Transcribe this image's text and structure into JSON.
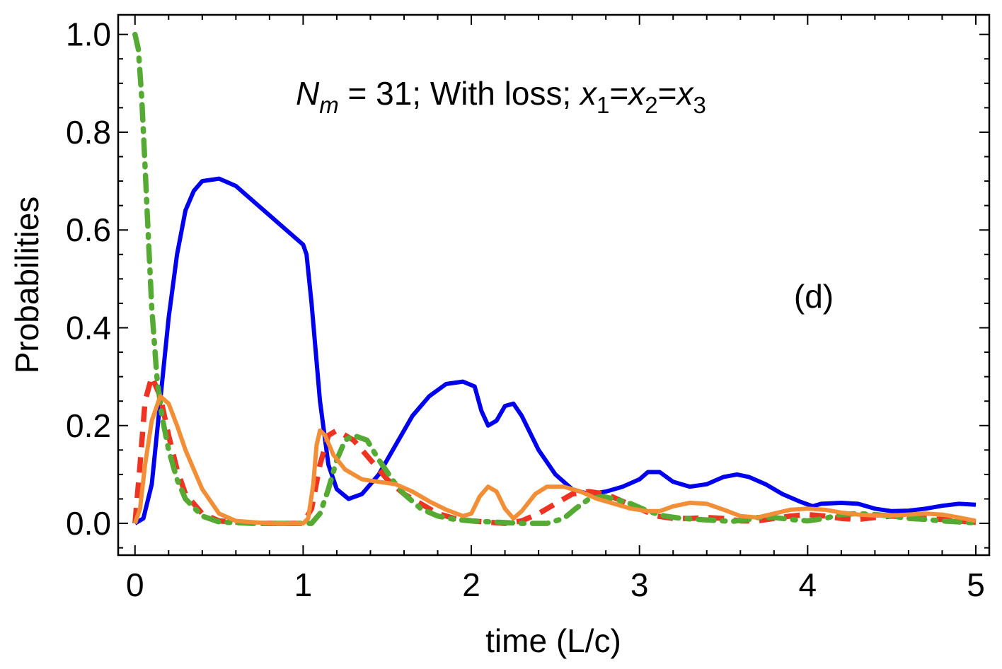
{
  "chart_data": {
    "type": "line",
    "title": "",
    "xlabel": "time (L/c)",
    "ylabel": "Probabilities",
    "xlim": [
      -0.1,
      5.08
    ],
    "ylim": [
      -0.065,
      1.04
    ],
    "xticks": [
      0,
      1,
      2,
      3,
      4,
      5
    ],
    "xtick_labels": [
      "0",
      "1",
      "2",
      "3",
      "4",
      "5"
    ],
    "yticks": [
      0.0,
      0.2,
      0.4,
      0.6,
      0.8,
      1.0
    ],
    "ytick_labels": [
      "0.0",
      "0.2",
      "0.4",
      "0.6",
      "0.8",
      "1.0"
    ],
    "annotation": {
      "N": "N",
      "m_sub": "m",
      "part1": " = 31; With loss; ",
      "x": "x",
      "s1": "1",
      "s2": "2",
      "s3": "3",
      "eq": "="
    },
    "panel_label": "(d)",
    "grid": false,
    "series": [
      {
        "name": "blue-solid",
        "color": "#0000ee",
        "dash": "solid",
        "points": [
          [
            0,
            0
          ],
          [
            0.05,
            0.01
          ],
          [
            0.1,
            0.08
          ],
          [
            0.15,
            0.25
          ],
          [
            0.2,
            0.42
          ],
          [
            0.25,
            0.55
          ],
          [
            0.3,
            0.64
          ],
          [
            0.35,
            0.68
          ],
          [
            0.4,
            0.7
          ],
          [
            0.5,
            0.705
          ],
          [
            0.6,
            0.69
          ],
          [
            0.7,
            0.66
          ],
          [
            0.8,
            0.63
          ],
          [
            0.9,
            0.6
          ],
          [
            1.0,
            0.57
          ],
          [
            1.02,
            0.55
          ],
          [
            1.05,
            0.45
          ],
          [
            1.1,
            0.25
          ],
          [
            1.15,
            0.12
          ],
          [
            1.2,
            0.07
          ],
          [
            1.27,
            0.05
          ],
          [
            1.35,
            0.06
          ],
          [
            1.45,
            0.1
          ],
          [
            1.55,
            0.16
          ],
          [
            1.65,
            0.22
          ],
          [
            1.75,
            0.26
          ],
          [
            1.85,
            0.285
          ],
          [
            1.95,
            0.29
          ],
          [
            2.02,
            0.28
          ],
          [
            2.06,
            0.23
          ],
          [
            2.1,
            0.2
          ],
          [
            2.15,
            0.21
          ],
          [
            2.2,
            0.24
          ],
          [
            2.25,
            0.245
          ],
          [
            2.3,
            0.22
          ],
          [
            2.4,
            0.15
          ],
          [
            2.5,
            0.1
          ],
          [
            2.6,
            0.07
          ],
          [
            2.7,
            0.06
          ],
          [
            2.8,
            0.065
          ],
          [
            2.9,
            0.075
          ],
          [
            3.0,
            0.09
          ],
          [
            3.05,
            0.105
          ],
          [
            3.12,
            0.105
          ],
          [
            3.2,
            0.085
          ],
          [
            3.3,
            0.075
          ],
          [
            3.4,
            0.08
          ],
          [
            3.5,
            0.095
          ],
          [
            3.58,
            0.1
          ],
          [
            3.65,
            0.095
          ],
          [
            3.75,
            0.08
          ],
          [
            3.85,
            0.06
          ],
          [
            3.95,
            0.045
          ],
          [
            4.03,
            0.035
          ],
          [
            4.08,
            0.04
          ],
          [
            4.2,
            0.042
          ],
          [
            4.3,
            0.04
          ],
          [
            4.4,
            0.03
          ],
          [
            4.5,
            0.025
          ],
          [
            4.6,
            0.026
          ],
          [
            4.7,
            0.03
          ],
          [
            4.8,
            0.036
          ],
          [
            4.9,
            0.04
          ],
          [
            5.0,
            0.038
          ]
        ]
      },
      {
        "name": "red-dashed",
        "color": "#ee3322",
        "dash": "dashed",
        "points": [
          [
            0,
            0
          ],
          [
            0.03,
            0.12
          ],
          [
            0.06,
            0.25
          ],
          [
            0.1,
            0.3
          ],
          [
            0.15,
            0.26
          ],
          [
            0.2,
            0.18
          ],
          [
            0.25,
            0.11
          ],
          [
            0.3,
            0.06
          ],
          [
            0.4,
            0.02
          ],
          [
            0.5,
            0.005
          ],
          [
            0.7,
            0.0
          ],
          [
            0.9,
            0.0
          ],
          [
            1.0,
            0.0
          ],
          [
            1.05,
            0.03
          ],
          [
            1.1,
            0.12
          ],
          [
            1.15,
            0.18
          ],
          [
            1.2,
            0.19
          ],
          [
            1.3,
            0.17
          ],
          [
            1.4,
            0.13
          ],
          [
            1.5,
            0.09
          ],
          [
            1.6,
            0.06
          ],
          [
            1.7,
            0.04
          ],
          [
            1.8,
            0.02
          ],
          [
            1.9,
            0.01
          ],
          [
            2.0,
            0.005
          ],
          [
            2.2,
            0.0
          ],
          [
            2.3,
            0.005
          ],
          [
            2.4,
            0.02
          ],
          [
            2.5,
            0.04
          ],
          [
            2.6,
            0.06
          ],
          [
            2.7,
            0.065
          ],
          [
            2.8,
            0.06
          ],
          [
            2.9,
            0.045
          ],
          [
            3.0,
            0.03
          ],
          [
            3.1,
            0.015
          ],
          [
            3.2,
            0.01
          ],
          [
            3.3,
            0.01
          ],
          [
            3.4,
            0.012
          ],
          [
            3.5,
            0.01
          ],
          [
            3.6,
            0.005
          ],
          [
            3.7,
            0.005
          ],
          [
            3.8,
            0.01
          ],
          [
            3.9,
            0.015
          ],
          [
            4.0,
            0.018
          ],
          [
            4.1,
            0.015
          ],
          [
            4.2,
            0.01
          ],
          [
            4.3,
            0.008
          ],
          [
            4.4,
            0.012
          ],
          [
            4.5,
            0.015
          ],
          [
            4.6,
            0.012
          ],
          [
            4.7,
            0.01
          ],
          [
            4.8,
            0.008
          ],
          [
            4.9,
            0.005
          ],
          [
            5.0,
            0.002
          ]
        ]
      },
      {
        "name": "green-dashdot",
        "color": "#55aa33",
        "dash": "dashdot",
        "points": [
          [
            0,
            1.0
          ],
          [
            0.02,
            0.97
          ],
          [
            0.04,
            0.87
          ],
          [
            0.06,
            0.73
          ],
          [
            0.08,
            0.58
          ],
          [
            0.1,
            0.44
          ],
          [
            0.13,
            0.3
          ],
          [
            0.16,
            0.22
          ],
          [
            0.2,
            0.15
          ],
          [
            0.25,
            0.09
          ],
          [
            0.3,
            0.05
          ],
          [
            0.4,
            0.015
          ],
          [
            0.5,
            0.003
          ],
          [
            0.7,
            0.0
          ],
          [
            1.0,
            0.0
          ],
          [
            1.05,
            0.0
          ],
          [
            1.1,
            0.02
          ],
          [
            1.15,
            0.07
          ],
          [
            1.2,
            0.13
          ],
          [
            1.25,
            0.17
          ],
          [
            1.3,
            0.18
          ],
          [
            1.38,
            0.17
          ],
          [
            1.45,
            0.13
          ],
          [
            1.55,
            0.08
          ],
          [
            1.6,
            0.06
          ],
          [
            1.7,
            0.03
          ],
          [
            1.8,
            0.015
          ],
          [
            1.9,
            0.008
          ],
          [
            2.0,
            0.005
          ],
          [
            2.3,
            0.0
          ],
          [
            2.45,
            0.0
          ],
          [
            2.55,
            0.01
          ],
          [
            2.62,
            0.03
          ],
          [
            2.7,
            0.05
          ],
          [
            2.78,
            0.055
          ],
          [
            2.85,
            0.05
          ],
          [
            2.95,
            0.04
          ],
          [
            3.05,
            0.025
          ],
          [
            3.15,
            0.015
          ],
          [
            3.25,
            0.01
          ],
          [
            3.35,
            0.008
          ],
          [
            3.45,
            0.006
          ],
          [
            3.55,
            0.004
          ],
          [
            3.65,
            0.008
          ],
          [
            3.7,
            0.012
          ],
          [
            3.8,
            0.012
          ],
          [
            3.9,
            0.008
          ],
          [
            4.0,
            0.005
          ],
          [
            4.1,
            0.01
          ],
          [
            4.2,
            0.018
          ],
          [
            4.3,
            0.02
          ],
          [
            4.4,
            0.018
          ],
          [
            4.5,
            0.015
          ],
          [
            4.6,
            0.01
          ],
          [
            4.7,
            0.008
          ],
          [
            4.8,
            0.005
          ],
          [
            4.9,
            0.003
          ],
          [
            5.0,
            0.001
          ]
        ]
      },
      {
        "name": "orange-solid",
        "color": "#f28e35",
        "dash": "solid",
        "points": [
          [
            0,
            0
          ],
          [
            0.03,
            0.03
          ],
          [
            0.06,
            0.12
          ],
          [
            0.1,
            0.21
          ],
          [
            0.15,
            0.26
          ],
          [
            0.2,
            0.245
          ],
          [
            0.25,
            0.2
          ],
          [
            0.3,
            0.15
          ],
          [
            0.35,
            0.11
          ],
          [
            0.4,
            0.07
          ],
          [
            0.5,
            0.02
          ],
          [
            0.6,
            0.005
          ],
          [
            0.8,
            0.0
          ],
          [
            1.0,
            0.0
          ],
          [
            1.03,
            0.01
          ],
          [
            1.06,
            0.08
          ],
          [
            1.08,
            0.16
          ],
          [
            1.1,
            0.19
          ],
          [
            1.13,
            0.18
          ],
          [
            1.18,
            0.14
          ],
          [
            1.25,
            0.11
          ],
          [
            1.35,
            0.09
          ],
          [
            1.45,
            0.085
          ],
          [
            1.55,
            0.08
          ],
          [
            1.65,
            0.065
          ],
          [
            1.75,
            0.045
          ],
          [
            1.85,
            0.028
          ],
          [
            1.95,
            0.015
          ],
          [
            2.0,
            0.02
          ],
          [
            2.05,
            0.055
          ],
          [
            2.1,
            0.075
          ],
          [
            2.15,
            0.065
          ],
          [
            2.2,
            0.03
          ],
          [
            2.25,
            0.01
          ],
          [
            2.3,
            0.025
          ],
          [
            2.38,
            0.06
          ],
          [
            2.45,
            0.075
          ],
          [
            2.55,
            0.075
          ],
          [
            2.65,
            0.065
          ],
          [
            2.75,
            0.05
          ],
          [
            2.85,
            0.04
          ],
          [
            2.95,
            0.03
          ],
          [
            3.05,
            0.025
          ],
          [
            3.12,
            0.025
          ],
          [
            3.2,
            0.035
          ],
          [
            3.3,
            0.042
          ],
          [
            3.4,
            0.04
          ],
          [
            3.5,
            0.028
          ],
          [
            3.6,
            0.015
          ],
          [
            3.7,
            0.012
          ],
          [
            3.8,
            0.02
          ],
          [
            3.9,
            0.028
          ],
          [
            4.0,
            0.03
          ],
          [
            4.1,
            0.028
          ],
          [
            4.2,
            0.022
          ],
          [
            4.3,
            0.018
          ],
          [
            4.4,
            0.016
          ],
          [
            4.5,
            0.016
          ],
          [
            4.6,
            0.018
          ],
          [
            4.7,
            0.02
          ],
          [
            4.8,
            0.018
          ],
          [
            4.9,
            0.012
          ],
          [
            5.0,
            0.005
          ]
        ]
      }
    ]
  }
}
